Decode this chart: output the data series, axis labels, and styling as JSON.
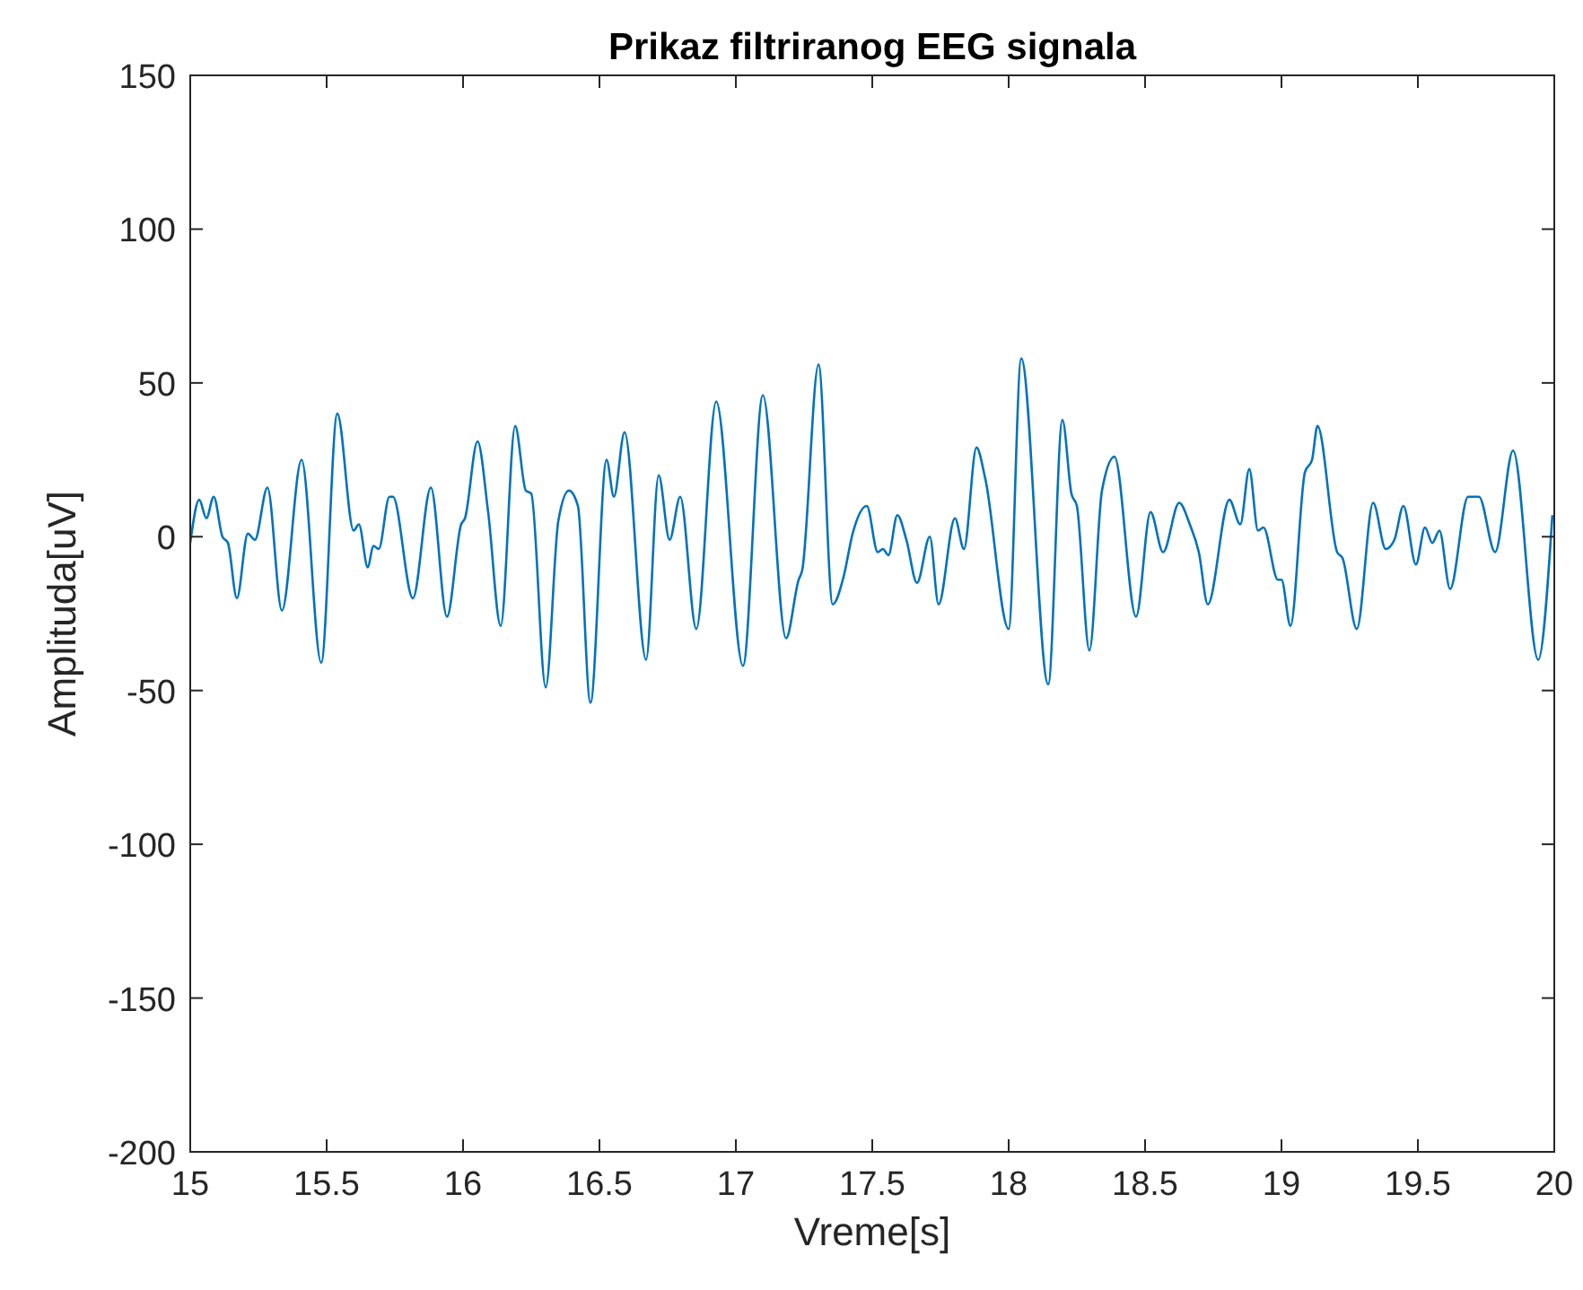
{
  "chart_data": {
    "type": "line",
    "title": "Prikaz filtriranog EEG signala",
    "xlabel": "Vreme[s]",
    "ylabel": "Amplituda[uV]",
    "xlim": [
      15,
      20
    ],
    "ylim": [
      -200,
      150
    ],
    "xticks": [
      15,
      15.5,
      16,
      16.5,
      17,
      17.5,
      18,
      18.5,
      19,
      19.5,
      20
    ],
    "yticks": [
      -200,
      -150,
      -100,
      -50,
      0,
      50,
      100,
      150
    ],
    "grid": false,
    "marker": "none",
    "line_style": "solid",
    "series": [
      {
        "color": "#0072bd",
        "x": [
          15.0,
          15.033,
          15.059,
          15.086,
          15.118,
          15.138,
          15.171,
          15.211,
          15.237,
          15.283,
          15.336,
          15.408,
          15.48,
          15.539,
          15.599,
          15.618,
          15.651,
          15.671,
          15.691,
          15.73,
          15.743,
          15.816,
          15.882,
          15.941,
          15.993,
          16.007,
          16.053,
          16.092,
          16.138,
          16.191,
          16.23,
          16.25,
          16.303,
          16.349,
          16.388,
          16.421,
          16.467,
          16.526,
          16.553,
          16.592,
          16.671,
          16.717,
          16.757,
          16.796,
          16.855,
          16.928,
          17.026,
          17.099,
          17.184,
          17.23,
          17.243,
          17.303,
          17.355,
          17.395,
          17.428,
          17.48,
          17.52,
          17.539,
          17.559,
          17.592,
          17.625,
          17.664,
          17.711,
          17.743,
          17.803,
          17.836,
          17.882,
          17.914,
          18.0,
          18.046,
          18.145,
          18.197,
          18.23,
          18.25,
          18.296,
          18.342,
          18.388,
          18.467,
          18.52,
          18.566,
          18.625,
          18.664,
          18.697,
          18.73,
          18.809,
          18.849,
          18.882,
          18.914,
          18.934,
          18.987,
          19.0,
          19.033,
          19.086,
          19.112,
          19.132,
          19.204,
          19.224,
          19.276,
          19.336,
          19.382,
          19.414,
          19.447,
          19.493,
          19.526,
          19.553,
          19.579,
          19.618,
          19.684,
          19.724,
          19.783,
          19.849,
          19.941,
          19.993
        ],
        "values": [
          -2,
          12,
          6,
          13,
          0,
          -2,
          -20,
          1,
          -1,
          16,
          -24,
          25,
          -41,
          40,
          2,
          4,
          -10,
          -3,
          -4,
          13,
          13,
          -20,
          16,
          -26,
          4,
          6,
          31,
          8,
          -29,
          36,
          15,
          14,
          -49,
          5,
          15,
          10,
          -54,
          25,
          13,
          34,
          -40,
          20,
          -1,
          13,
          -30,
          44,
          -42,
          46,
          -33,
          -14,
          -11,
          56,
          -22,
          -13,
          1,
          10,
          -5,
          -4,
          -6,
          7,
          -1,
          -15,
          0,
          -22,
          6,
          -4,
          29,
          19,
          -30,
          58,
          -48,
          38,
          14,
          10,
          -37,
          15,
          26,
          -26,
          8,
          -5,
          11,
          4,
          -5,
          -22,
          12,
          4,
          22,
          2,
          3,
          -14,
          -14,
          -29,
          21,
          25,
          36,
          -5,
          -7,
          -30,
          11,
          -4,
          -1,
          10,
          -9,
          3,
          -2,
          2,
          -17,
          13,
          13,
          -5,
          28,
          -40,
          7
        ]
      }
    ]
  }
}
